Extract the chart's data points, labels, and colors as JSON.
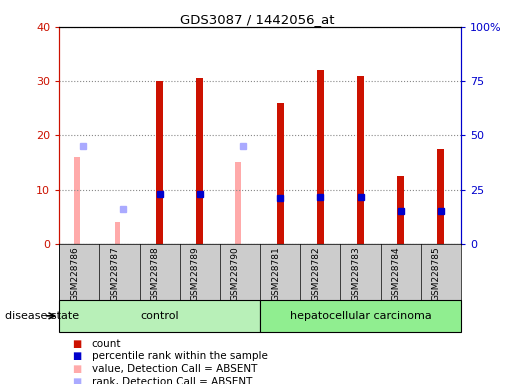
{
  "title": "GDS3087 / 1442056_at",
  "samples": [
    "GSM228786",
    "GSM228787",
    "GSM228788",
    "GSM228789",
    "GSM228790",
    "GSM228781",
    "GSM228782",
    "GSM228783",
    "GSM228784",
    "GSM228785"
  ],
  "count": [
    null,
    null,
    30,
    30.5,
    null,
    26,
    32,
    31,
    12.5,
    17.5
  ],
  "percentile_rank": [
    null,
    null,
    23,
    23,
    null,
    21,
    21.5,
    21.5,
    15,
    15
  ],
  "absent_value": [
    16,
    4,
    null,
    null,
    15,
    null,
    null,
    null,
    null,
    null
  ],
  "absent_rank": [
    18,
    6.5,
    null,
    null,
    18,
    null,
    null,
    null,
    null,
    null
  ],
  "ylim_left": [
    0,
    40
  ],
  "ylim_right": [
    0,
    100
  ],
  "yticks_left": [
    0,
    10,
    20,
    30,
    40
  ],
  "yticks_right": [
    0,
    25,
    50,
    75,
    100
  ],
  "ytick_labels_right": [
    "0",
    "25",
    "50",
    "75",
    "100%"
  ],
  "color_count": "#cc1100",
  "color_percentile": "#0000cc",
  "color_absent_value": "#ffaaaa",
  "color_absent_rank": "#aaaaff",
  "control_color": "#b8f0b8",
  "cancer_color": "#90ee90",
  "xlabels_bg": "#c8c8c8",
  "legend_items": [
    {
      "label": "count",
      "color": "#cc1100"
    },
    {
      "label": "percentile rank within the sample",
      "color": "#0000cc"
    },
    {
      "label": "value, Detection Call = ABSENT",
      "color": "#ffaaaa"
    },
    {
      "label": "rank, Detection Call = ABSENT",
      "color": "#aaaaff"
    }
  ],
  "disease_state_label": "disease state",
  "group_label_control": "control",
  "group_label_cancer": "hepatocellular carcinoma",
  "n_control": 5,
  "n_cancer": 5
}
